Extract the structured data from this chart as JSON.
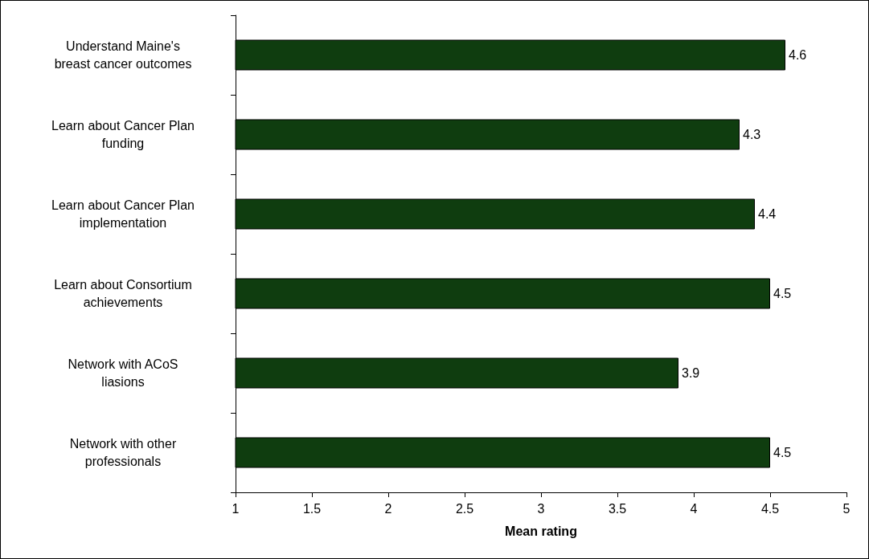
{
  "chart_data": {
    "type": "bar",
    "orientation": "horizontal",
    "xlabel": "Mean rating",
    "categories": [
      "Understand Maine's\nbreast cancer outcomes",
      "Learn about Cancer Plan\nfunding",
      "Learn about Cancer Plan\nimplementation",
      "Learn about Consortium\nachievements",
      "Network with ACoS\nliasions",
      "Network with other\nprofessionals"
    ],
    "values": [
      4.6,
      4.3,
      4.4,
      4.5,
      3.9,
      4.5
    ],
    "color": "#0f3d0f",
    "xlim": [
      1,
      5
    ],
    "xticks": [
      1,
      1.5,
      2,
      2.5,
      3,
      3.5,
      4,
      4.5,
      5
    ],
    "grid": false,
    "data_labels": true
  }
}
